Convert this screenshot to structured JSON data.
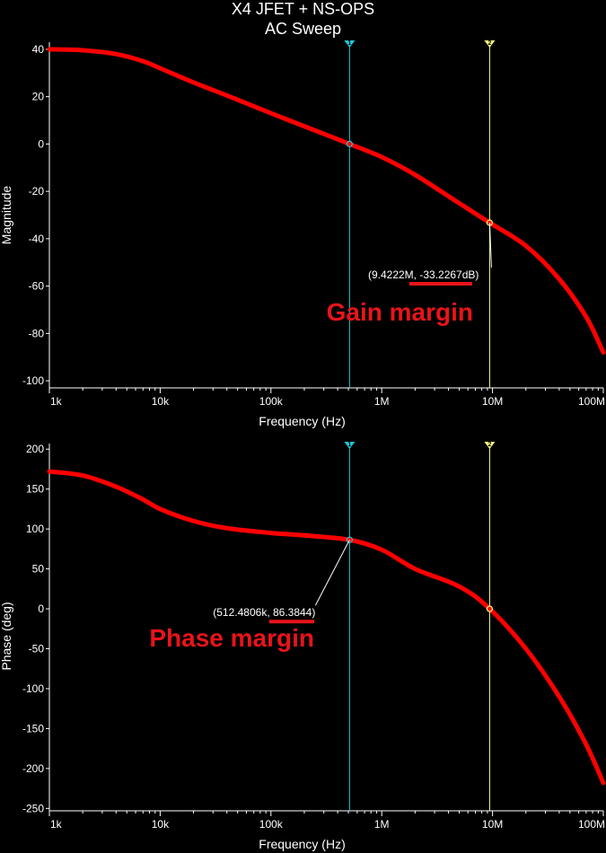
{
  "header": {
    "title": "X4 JFET + NS-OPS",
    "subtitle": "AC Sweep"
  },
  "colors": {
    "curve": "#ff0000",
    "cursor1": "#1ec8d8",
    "cursor2": "#ffff80",
    "annotation": "#e8141a",
    "axis": "#ffffff"
  },
  "chart_data": [
    {
      "type": "line",
      "xscale": "log",
      "xlabel": "Frequency (Hz)",
      "ylabel": "Magnitude",
      "xlim": [
        1000,
        100000000
      ],
      "ylim": [
        -103,
        43
      ],
      "xticks": [
        1000,
        10000,
        100000,
        1000000,
        10000000,
        100000000
      ],
      "xtick_labels": [
        "1k",
        "10k",
        "100k",
        "1M",
        "10M",
        "100M"
      ],
      "yticks": [
        40,
        20,
        0,
        -20,
        -40,
        -60,
        -80,
        -100
      ],
      "ytick_labels": [
        "40",
        "20",
        "0",
        "-20",
        "-40",
        "-60",
        "-80",
        "-100"
      ],
      "series": [
        {
          "x": [
            1000,
            2000,
            4000,
            7000,
            10000,
            20000,
            40000,
            100000,
            200000,
            512480,
            1000000,
            2000000,
            5000000,
            9422200,
            20000000,
            40000000,
            70000000,
            100000000
          ],
          "y": [
            40,
            39.6,
            38,
            35,
            32,
            26,
            20.5,
            13,
            7.5,
            0,
            -5.5,
            -13,
            -25,
            -33.2267,
            -43,
            -57,
            -73,
            -88
          ]
        }
      ],
      "cursors": [
        {
          "label": "1",
          "x": 512480,
          "color_key": "cursor1"
        },
        {
          "label": "2",
          "x": 9422200,
          "color_key": "cursor2"
        }
      ],
      "marker_points": [
        {
          "x": 512480,
          "y": 0
        },
        {
          "x": 9422200,
          "y": -33.2267
        }
      ],
      "annotation": {
        "x": 9422200,
        "y": -33.2267,
        "text": "(9.4222M, -33.2267dB)"
      },
      "callout": "Gain margin"
    },
    {
      "type": "line",
      "xscale": "log",
      "xlabel": "Frequency (Hz)",
      "ylabel": "Phase (deg)",
      "xlim": [
        1000,
        100000000
      ],
      "ylim": [
        -253,
        207
      ],
      "xticks": [
        1000,
        10000,
        100000,
        1000000,
        10000000,
        100000000
      ],
      "xtick_labels": [
        "1k",
        "10k",
        "100k",
        "1M",
        "10M",
        "100M"
      ],
      "yticks": [
        200,
        150,
        100,
        50,
        0,
        -50,
        -100,
        -150,
        -200,
        -250
      ],
      "ytick_labels": [
        "200",
        "150",
        "100",
        "50",
        "0",
        "-50",
        "-100",
        "-150",
        "-200",
        "-250"
      ],
      "series": [
        {
          "x": [
            1000,
            2000,
            4000,
            7000,
            10000,
            20000,
            40000,
            100000,
            200000,
            512480,
            1000000,
            2000000,
            5000000,
            9422200,
            20000000,
            40000000,
            70000000,
            100000000
          ],
          "y": [
            172,
            167,
            153,
            137,
            125,
            110,
            101,
            95,
            92,
            86.3844,
            74,
            50,
            28,
            0,
            -50,
            -110,
            -170,
            -218
          ]
        }
      ],
      "cursors": [
        {
          "label": "1",
          "x": 512480,
          "color_key": "cursor1"
        },
        {
          "label": "2",
          "x": 9422200,
          "color_key": "cursor2"
        }
      ],
      "marker_points": [
        {
          "x": 512480,
          "y": 86.3844
        },
        {
          "x": 9422200,
          "y": 0
        }
      ],
      "annotation": {
        "x": 512480,
        "y": 86.3844,
        "text": "(512.4806k, 86.3844)"
      },
      "callout": "Phase margin"
    }
  ]
}
